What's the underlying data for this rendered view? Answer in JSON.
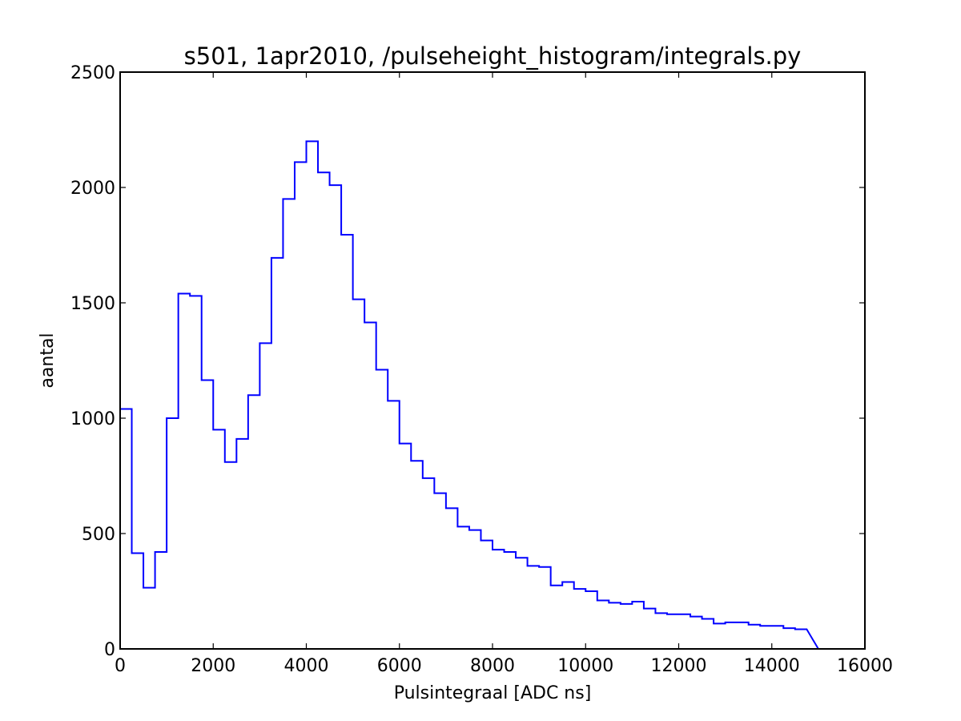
{
  "chart_data": {
    "type": "histogram",
    "title": "s501, 1apr2010, /pulseheight_histogram/integrals.py",
    "xlabel": "Pulsintegraal [ADC ns]",
    "ylabel": "aantal",
    "xlim": [
      0,
      16000
    ],
    "ylim": [
      0,
      2500
    ],
    "xticks": [
      0,
      2000,
      4000,
      6000,
      8000,
      10000,
      12000,
      14000,
      16000
    ],
    "yticks": [
      0,
      500,
      1000,
      1500,
      2000,
      2500
    ],
    "grid": false,
    "legend": "none",
    "line_color": "#0000ff",
    "bin_edges": [
      0,
      250,
      500,
      750,
      1000,
      1250,
      1500,
      1750,
      2000,
      2250,
      2500,
      2750,
      3000,
      3250,
      3500,
      3750,
      4000,
      4250,
      4500,
      4750,
      5000,
      5250,
      5500,
      5750,
      6000,
      6250,
      6500,
      6750,
      7000,
      7250,
      7500,
      7750,
      8000,
      8250,
      8500,
      8750,
      9000,
      9250,
      9500,
      9750,
      10000,
      10250,
      10500,
      10750,
      11000,
      11250,
      11500,
      11750,
      12000,
      12250,
      12500,
      12750,
      13000,
      13250,
      13500,
      13750,
      14000,
      14250,
      14500,
      14750
    ],
    "counts": [
      1040,
      415,
      265,
      420,
      1000,
      1540,
      1530,
      1165,
      950,
      810,
      910,
      1100,
      1325,
      1695,
      1950,
      2110,
      2200,
      2065,
      2010,
      1795,
      1515,
      1415,
      1210,
      1075,
      890,
      815,
      740,
      675,
      610,
      530,
      515,
      470,
      430,
      420,
      395,
      360,
      355,
      275,
      290,
      260,
      250,
      210,
      200,
      195,
      205,
      175,
      155,
      150,
      150,
      140,
      130,
      110,
      115,
      115,
      105,
      100,
      100,
      90,
      85
    ]
  }
}
